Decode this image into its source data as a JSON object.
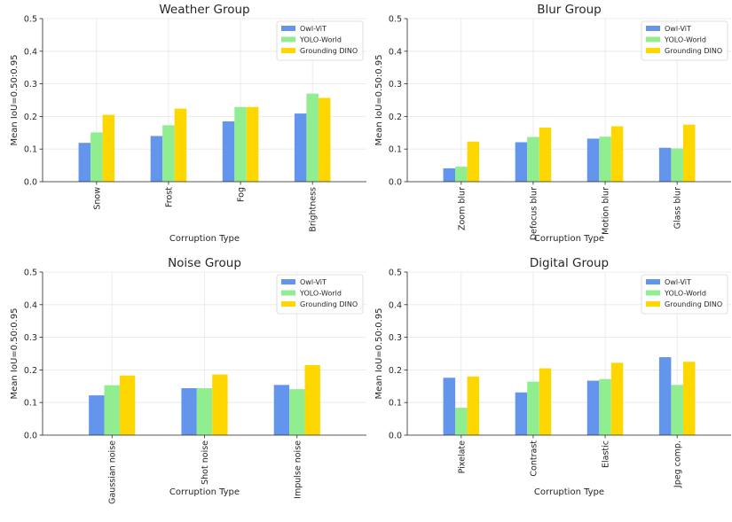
{
  "chart_data": [
    {
      "type": "bar",
      "title": "Weather Group",
      "xlabel": "Corruption Type",
      "ylabel": "Mean IoU=0.50:0.95",
      "ylim": [
        0,
        0.5
      ],
      "yticks": [
        "0.0",
        "0.1",
        "0.2",
        "0.3",
        "0.4",
        "0.5"
      ],
      "grid": true,
      "legend_position": "top-right",
      "categories": [
        "Snow",
        "Frost",
        "Fog",
        "Brightness"
      ],
      "series": [
        {
          "name": "Owl-ViT",
          "color": "#6495ed",
          "values": [
            0.119,
            0.14,
            0.185,
            0.209
          ]
        },
        {
          "name": "YOLO-World",
          "color": "#90ee90",
          "values": [
            0.151,
            0.173,
            0.229,
            0.27
          ]
        },
        {
          "name": "Grounding DINO",
          "color": "#ffd700",
          "values": [
            0.205,
            0.224,
            0.229,
            0.257
          ]
        }
      ]
    },
    {
      "type": "bar",
      "title": "Blur Group",
      "xlabel": "Corruption Type",
      "ylabel": "Mean IoU=0.50:0.95",
      "ylim": [
        0,
        0.5
      ],
      "yticks": [
        "0.0",
        "0.1",
        "0.2",
        "0.3",
        "0.4",
        "0.5"
      ],
      "grid": true,
      "legend_position": "top-right",
      "categories": [
        "Zoom blur",
        "Defocus blur",
        "Motion blur",
        "Glass blur"
      ],
      "series": [
        {
          "name": "Owl-ViT",
          "color": "#6495ed",
          "values": [
            0.041,
            0.121,
            0.132,
            0.104
          ]
        },
        {
          "name": "YOLO-World",
          "color": "#90ee90",
          "values": [
            0.046,
            0.137,
            0.138,
            0.102
          ]
        },
        {
          "name": "Grounding DINO",
          "color": "#ffd700",
          "values": [
            0.123,
            0.166,
            0.17,
            0.175
          ]
        }
      ]
    },
    {
      "type": "bar",
      "title": "Noise Group",
      "xlabel": "Corruption Type",
      "ylabel": "Mean IoU=0.50:0.95",
      "ylim": [
        0,
        0.5
      ],
      "yticks": [
        "0.0",
        "0.1",
        "0.2",
        "0.3",
        "0.4",
        "0.5"
      ],
      "grid": true,
      "legend_position": "top-right",
      "categories": [
        "Gaussian noise",
        "Shot noise",
        "Impulse noise"
      ],
      "series": [
        {
          "name": "Owl-ViT",
          "color": "#6495ed",
          "values": [
            0.122,
            0.144,
            0.154
          ]
        },
        {
          "name": "YOLO-World",
          "color": "#90ee90",
          "values": [
            0.153,
            0.144,
            0.141
          ]
        },
        {
          "name": "Grounding DINO",
          "color": "#ffd700",
          "values": [
            0.183,
            0.186,
            0.215
          ]
        }
      ]
    },
    {
      "type": "bar",
      "title": "Digital Group",
      "xlabel": "Corruption Type",
      "ylabel": "Mean IoU=0.50:0.95",
      "ylim": [
        0,
        0.5
      ],
      "yticks": [
        "0.0",
        "0.1",
        "0.2",
        "0.3",
        "0.4",
        "0.5"
      ],
      "grid": true,
      "legend_position": "top-right",
      "categories": [
        "Pixelate",
        "Contrast",
        "Elastic",
        "Jpeg comp."
      ],
      "series": [
        {
          "name": "Owl-ViT",
          "color": "#6495ed",
          "values": [
            0.176,
            0.131,
            0.167,
            0.239
          ]
        },
        {
          "name": "YOLO-World",
          "color": "#90ee90",
          "values": [
            0.084,
            0.164,
            0.172,
            0.154
          ]
        },
        {
          "name": "Grounding DINO",
          "color": "#ffd700",
          "values": [
            0.18,
            0.205,
            0.222,
            0.225
          ]
        }
      ]
    }
  ]
}
